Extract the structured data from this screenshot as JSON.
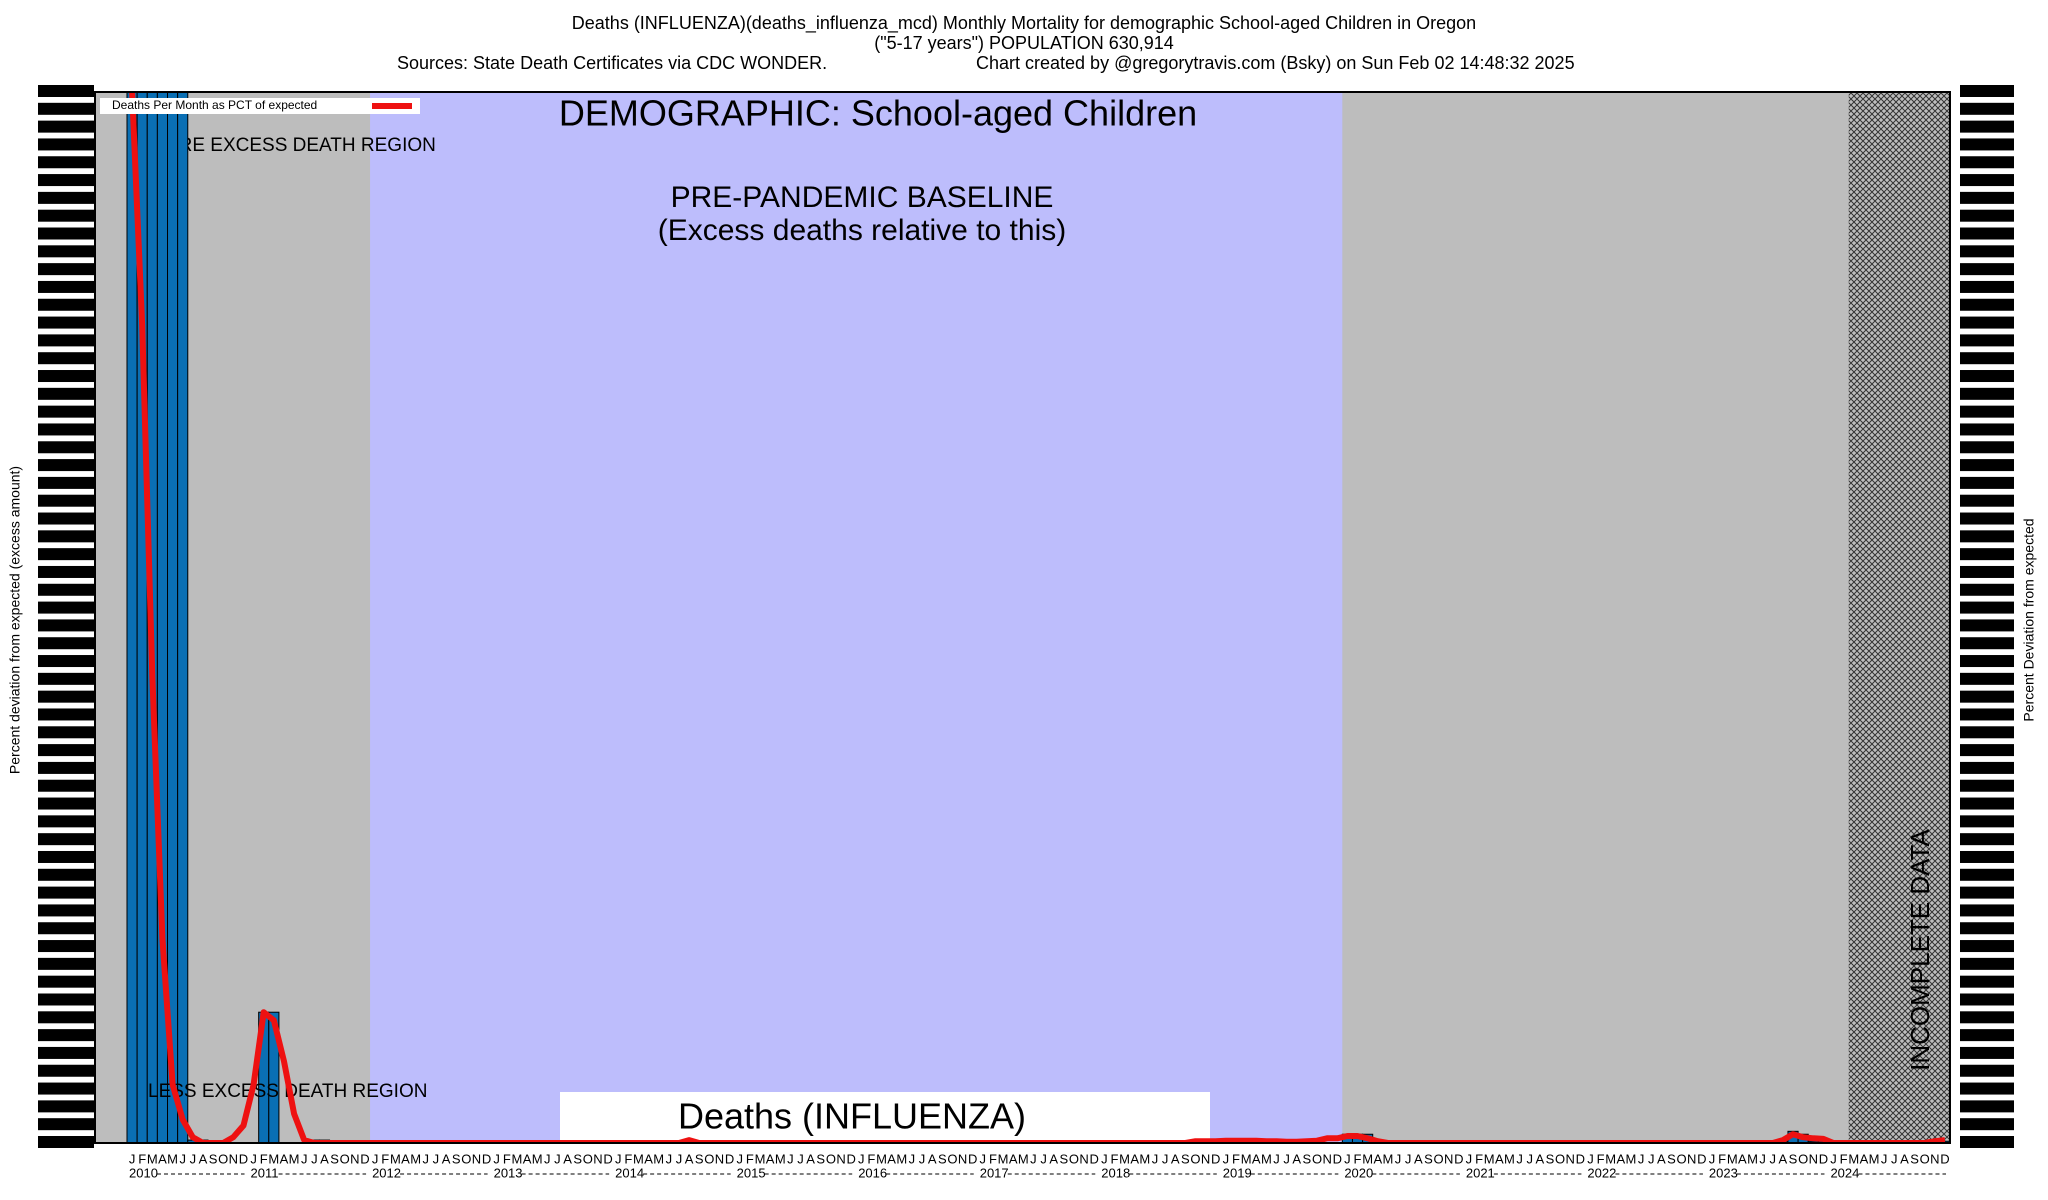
{
  "chart_data": {
    "type": "bar",
    "title": "Deaths (INFLUENZA)(deaths_influenza_mcd) Monthly Mortality for demographic School-aged Children in Oregon",
    "subtitle": "(\"5-17 years\") POPULATION 630,914",
    "sources": "Sources: State Death Certificates via CDC WONDER.",
    "credit": "Chart created by @gregorytravis.com (Bsky) on Sun Feb 02 14:48:32 2025",
    "heading": "DEMOGRAPHIC: School-aged Children",
    "more_label": "MORE EXCESS DEATH REGION",
    "less_label": "LESS EXCESS DEATH REGION",
    "baseline_label": "PRE-PANDEMIC BASELINE",
    "baseline_note": "(Excess deaths relative to this)",
    "cause_label": "Deaths (INFLUENZA)",
    "incomplete_label": "INCOMPLETE DATA",
    "y_label": "Percent deviation from expected (excess amount)",
    "y2_label": "Percent Deviation from expected",
    "ylim": [
      -100,
      1700
    ],
    "bar_color": "#0a6fb4",
    "categories": [
      "J",
      "F",
      "M",
      "A",
      "M",
      "J",
      "J",
      "A",
      "S",
      "O",
      "N",
      "D",
      "J",
      "F",
      "M",
      "A",
      "M",
      "J",
      "J",
      "A",
      "S",
      "O",
      "N",
      "D",
      "J",
      "F",
      "M",
      "A",
      "M",
      "J",
      "J",
      "A",
      "S",
      "O",
      "N",
      "D",
      "J",
      "F",
      "M",
      "A",
      "M",
      "J",
      "J",
      "A",
      "S",
      "O",
      "N",
      "D",
      "J",
      "F",
      "M",
      "A",
      "M",
      "J",
      "J",
      "A",
      "S",
      "O",
      "N",
      "D",
      "J",
      "F",
      "M",
      "A",
      "M",
      "J",
      "J",
      "A",
      "S",
      "O",
      "N",
      "D",
      "J",
      "F",
      "M",
      "A",
      "M",
      "J",
      "J",
      "A",
      "S",
      "O",
      "N",
      "D",
      "J",
      "F",
      "M",
      "A",
      "M",
      "J",
      "J",
      "A",
      "S",
      "O",
      "N",
      "D",
      "J",
      "F",
      "M",
      "A",
      "M",
      "J",
      "J",
      "A",
      "S",
      "O",
      "N",
      "D",
      "J",
      "F",
      "M",
      "A",
      "M",
      "J",
      "J",
      "A",
      "S",
      "O",
      "N",
      "D",
      "J",
      "F",
      "M",
      "A",
      "M",
      "J",
      "J",
      "A",
      "S",
      "O",
      "N",
      "D",
      "J",
      "F",
      "M",
      "A",
      "M",
      "J",
      "J",
      "A",
      "S",
      "O",
      "N",
      "D",
      "J",
      "F",
      "M",
      "A",
      "M",
      "J",
      "J",
      "A",
      "S",
      "O",
      "N",
      "D",
      "J",
      "F",
      "M",
      "A",
      "M",
      "J",
      "J",
      "A",
      "S",
      "O",
      "N",
      "D",
      "J",
      "F",
      "M",
      "A",
      "M",
      "J",
      "J",
      "A",
      "S",
      "O",
      "N",
      "D"
    ],
    "years": [
      "2010",
      "2011",
      "2012",
      "2013",
      "2014",
      "2015",
      "2016",
      "2017",
      "2018",
      "2019",
      "2020",
      "2021",
      "2022",
      "2023",
      "2024"
    ],
    "values": [
      1700,
      1700,
      1700,
      1700,
      1700,
      1700,
      -95,
      -95,
      -100,
      -100,
      -100,
      -100,
      -100,
      124,
      124,
      -100,
      -100,
      -100,
      -95,
      -95,
      -97,
      -97,
      -97,
      -97,
      -98,
      -98,
      -98,
      -98,
      -98,
      -98,
      -98,
      -98,
      -98,
      -98,
      -98,
      -98,
      -98,
      -98,
      -98,
      -98,
      -98,
      -98,
      -98,
      -98,
      -98,
      -98,
      -98,
      -98,
      -100,
      -100,
      -100,
      -100,
      -100,
      -100,
      -100,
      -100,
      -100,
      -100,
      -100,
      -100,
      -100,
      -100,
      -100,
      -100,
      -100,
      -100,
      -100,
      -100,
      -100,
      -100,
      -100,
      -100,
      -100,
      -100,
      -100,
      -100,
      -100,
      -100,
      -100,
      -100,
      -100,
      -100,
      -100,
      -100,
      -100,
      -100,
      -100,
      -100,
      -100,
      -100,
      -100,
      -100,
      -100,
      -100,
      -100,
      -100,
      -100,
      -100,
      -100,
      -100,
      -100,
      -100,
      -100,
      -100,
      -100,
      -100,
      -100,
      -100,
      -100,
      -100,
      -100,
      -100,
      -100,
      -100,
      -100,
      -100,
      -100,
      -100,
      -100,
      -100,
      -85,
      -85,
      -85,
      -95,
      -97,
      -97,
      -97,
      -97,
      -97,
      -97,
      -97,
      -97,
      -97,
      -97,
      -97,
      -97,
      -97,
      -97,
      -97,
      -97,
      -97,
      -97,
      -97,
      -97,
      -97,
      -97,
      -97,
      -97,
      -97,
      -97,
      -97,
      -97,
      -97,
      -97,
      -97,
      -97,
      -97,
      -97,
      -97,
      -97,
      -97,
      -97,
      -97,
      -97,
      -80,
      -85,
      -97,
      -97,
      -97,
      -97,
      -97,
      -97,
      -97,
      -97,
      -97,
      -97,
      -97,
      -97,
      -97,
      -97
    ],
    "line": {
      "name": "Deaths Per Month as PCT of expected",
      "color": "#ee1111",
      "values": [
        1700,
        1300,
        700,
        250,
        0,
        -60,
        -90,
        -100,
        -100,
        -100,
        -90,
        -70,
        0,
        124,
        110,
        40,
        -50,
        -95,
        -100,
        -100,
        -100,
        -100,
        -100,
        -100,
        -100,
        -100,
        -100,
        -100,
        -100,
        -100,
        -100,
        -100,
        -100,
        -100,
        -100,
        -100,
        -100,
        -100,
        -100,
        -100,
        -100,
        -100,
        -100,
        -100,
        -100,
        -100,
        -100,
        -100,
        -100,
        -100,
        -100,
        -100,
        -100,
        -100,
        -100,
        -95,
        -100,
        -100,
        -100,
        -100,
        -100,
        -100,
        -100,
        -100,
        -100,
        -100,
        -100,
        -100,
        -100,
        -100,
        -100,
        -100,
        -100,
        -100,
        -100,
        -100,
        -100,
        -100,
        -100,
        -100,
        -100,
        -100,
        -100,
        -100,
        -100,
        -100,
        -100,
        -100,
        -100,
        -100,
        -100,
        -100,
        -100,
        -100,
        -100,
        -100,
        -100,
        -100,
        -100,
        -100,
        -100,
        -100,
        -100,
        -100,
        -100,
        -97,
        -97,
        -97,
        -96,
        -96,
        -96,
        -96,
        -97,
        -97,
        -98,
        -98,
        -97,
        -96,
        -92,
        -92,
        -88,
        -88,
        -92,
        -97,
        -100,
        -100,
        -100,
        -100,
        -100,
        -100,
        -100,
        -100,
        -100,
        -100,
        -100,
        -100,
        -100,
        -100,
        -100,
        -100,
        -100,
        -100,
        -100,
        -100,
        -100,
        -100,
        -100,
        -100,
        -100,
        -100,
        -100,
        -100,
        -100,
        -100,
        -100,
        -100,
        -100,
        -100,
        -100,
        -100,
        -100,
        -100,
        -100,
        -95,
        -85,
        -90,
        -92,
        -93,
        -100,
        -100,
        -100,
        -100,
        -100,
        -100,
        -100,
        -100,
        -100,
        -100,
        -97,
        -95
      ]
    }
  }
}
